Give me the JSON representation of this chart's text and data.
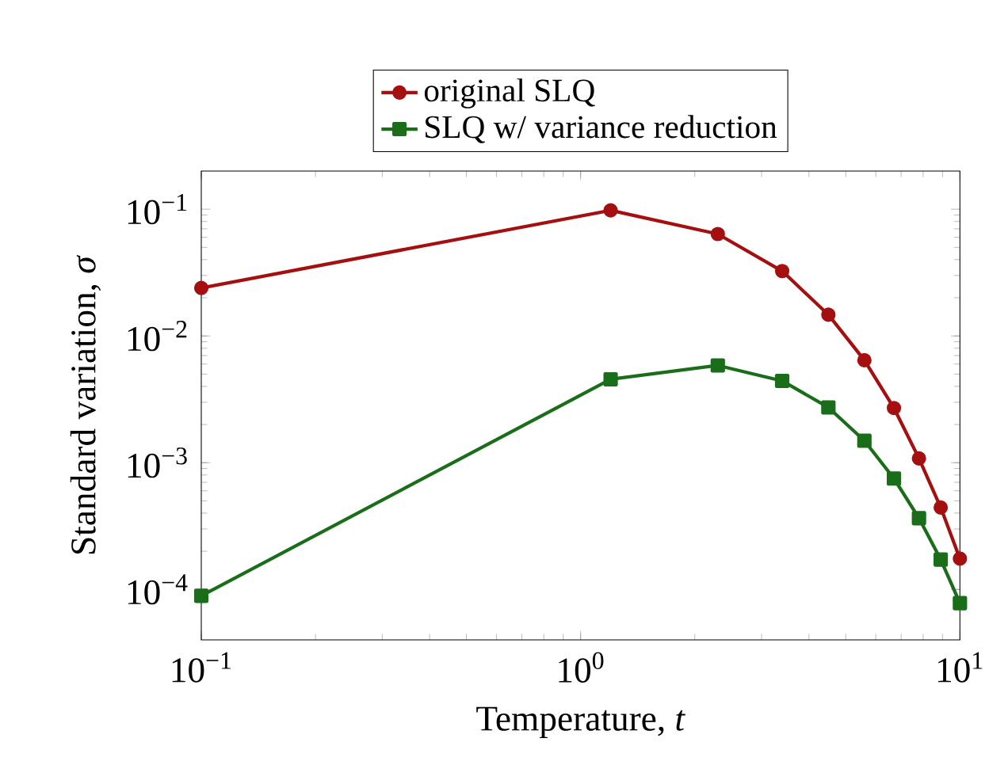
{
  "chart_data": {
    "type": "line",
    "xlabel": "Temperature, *t*",
    "ylabel": "Standard variation, *σ*",
    "log": "xy",
    "grid": false,
    "legend": "top",
    "line_style": "solid",
    "xlim": [
      0.1,
      10
    ],
    "ylim": [
      4e-05,
      0.2
    ],
    "xticks": [
      {
        "value": 0.1,
        "label": "10$^{−1}$"
      },
      {
        "value": 1,
        "label": "10$^{0}$"
      },
      {
        "value": 10,
        "label": "10$^{1}$"
      }
    ],
    "yticks": [
      {
        "value": 0.0001,
        "label": "10$^{−4}$"
      },
      {
        "value": 0.001,
        "label": "10$^{−3}$"
      },
      {
        "value": 0.01,
        "label": "10$^{−2}$"
      },
      {
        "value": 0.1,
        "label": "10$^{−1}$"
      }
    ],
    "x": [
      0.1,
      1.2,
      2.3,
      3.4,
      4.5,
      5.6,
      6.7,
      7.8,
      8.9,
      10
    ],
    "series": [
      {
        "name": "original SLQ",
        "color": "#a50f0f",
        "marker": "circle",
        "values": [
          0.0239,
          0.098,
          0.0637,
          0.0325,
          0.0147,
          0.00643,
          0.0027,
          0.00108,
          0.000443,
          0.000175
        ]
      },
      {
        "name": "SLQ w/ variance reduction",
        "color": "#1a6e1a",
        "marker": "square",
        "values": [
          8.9e-05,
          0.00455,
          0.00585,
          0.00442,
          0.00273,
          0.00149,
          0.00075,
          0.000365,
          0.000172,
          7.8e-05
        ]
      }
    ]
  }
}
